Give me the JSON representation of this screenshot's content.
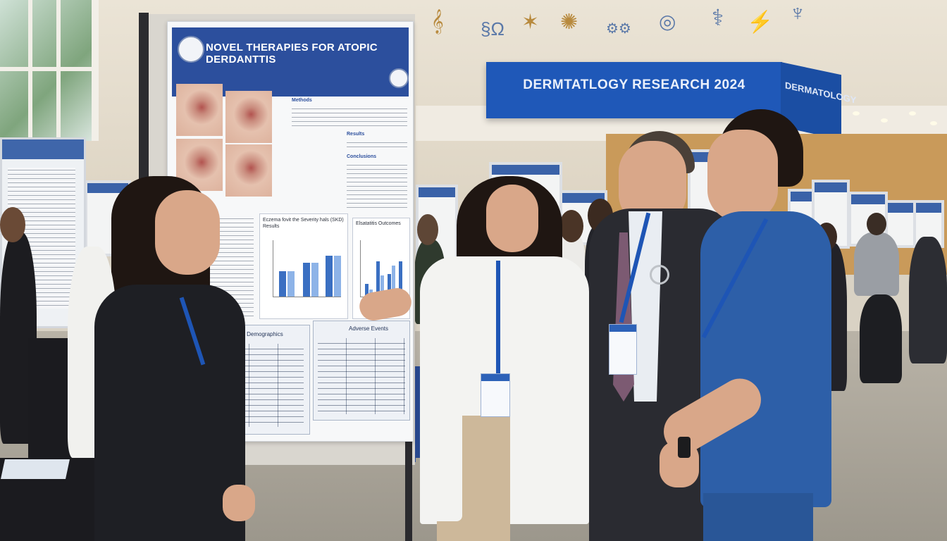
{
  "scene": {
    "description_tag": "medical-conference-poster-session"
  },
  "banner": {
    "main_text": "DERMTATLOGY RESEARCH 2024",
    "side_text": "DERMATOLOGY"
  },
  "poster": {
    "title": "NOVEL THERAPIES FOR ATOPIC DERDANTTIS",
    "chart_left_title": "Eczema fovit the Severity hals (SKD) Results",
    "chart_right_title": "Elsatatitis Outcomes",
    "table_left_title": "Patient Demographics",
    "table_right_title": "Adverse Events",
    "section_1": "Methods",
    "section_2": "Results",
    "section_3": "Conclusions"
  },
  "colors": {
    "poster_blue": "#2c4f9d",
    "banner_blue": "#1f58b8",
    "scrubs_blue": "#2d5fa8"
  }
}
